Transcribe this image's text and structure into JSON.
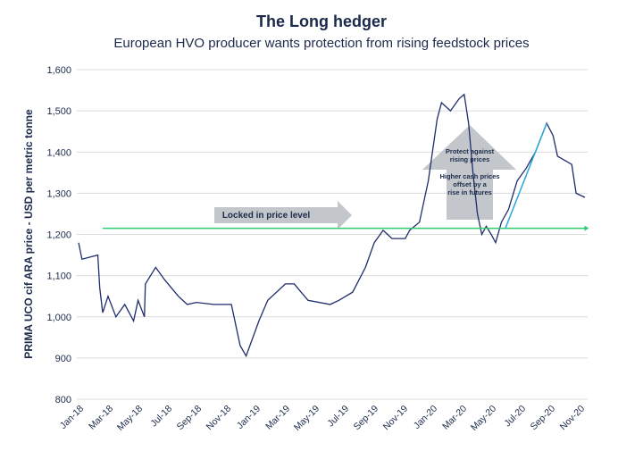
{
  "chart_data": {
    "type": "line",
    "title": "The Long hedger",
    "subtitle": "European HVO producer wants protection from rising feedstock prices",
    "xlabel": "",
    "ylabel": "PRIMA UCO cif ARA price - USD per metric tonne",
    "ylim": [
      800,
      1600
    ],
    "yticks": [
      800,
      900,
      1000,
      1100,
      1200,
      1300,
      1400,
      1500,
      1600
    ],
    "ytick_labels": [
      "800",
      "900",
      "1,000",
      "1,100",
      "1,200",
      "1,300",
      "1,400",
      "1,500",
      "1,600"
    ],
    "xticks": [
      "2018-01-01",
      "2018-03-01",
      "2018-05-01",
      "2018-07-01",
      "2018-09-01",
      "2018-11-01",
      "2019-01-01",
      "2019-03-01",
      "2019-05-01",
      "2019-07-01",
      "2019-09-01",
      "2019-11-01",
      "2020-01-01",
      "2020-03-01",
      "2020-05-01",
      "2020-07-01",
      "2020-09-01",
      "2020-11-01"
    ],
    "xtick_labels": [
      "Jan-18",
      "Mar-18",
      "May-18",
      "Jul-18",
      "Sep-18",
      "Nov-18",
      "Jan-19",
      "Mar-19",
      "May-19",
      "Jul-19",
      "Sep-19",
      "Nov-19",
      "Jan-20",
      "Mar-20",
      "May-20",
      "Jul-20",
      "Sep-20",
      "Nov-20"
    ],
    "grid": "horizontal",
    "line_color": "#1f2d6b",
    "series": [
      {
        "x": [
          "2018-01-01",
          "2018-01-08",
          "2018-02-10",
          "2018-02-14",
          "2018-02-20",
          "2018-03-01",
          "2018-03-17",
          "2018-04-05",
          "2018-04-23",
          "2018-05-02",
          "2018-05-15",
          "2018-05-17",
          "2018-06-08",
          "2018-06-26",
          "2018-07-24",
          "2018-08-12",
          "2018-09-01",
          "2018-10-06",
          "2018-11-12",
          "2018-11-21",
          "2018-11-30",
          "2018-12-12",
          "2019-01-08",
          "2019-01-26",
          "2019-03-02",
          "2019-03-20",
          "2019-04-18",
          "2019-06-03",
          "2019-06-21",
          "2019-07-19",
          "2019-08-15",
          "2019-09-03",
          "2019-09-21",
          "2019-10-09",
          "2019-11-06",
          "2019-11-15",
          "2019-12-05",
          "2019-12-23",
          "2020-01-11",
          "2020-01-20",
          "2020-02-08",
          "2020-02-26",
          "2020-03-06",
          "2020-03-15",
          "2020-03-24",
          "2020-04-03",
          "2020-04-12",
          "2020-04-21",
          "2020-05-01",
          "2020-05-10",
          "2020-05-22",
          "2020-06-06",
          "2020-06-24",
          "2020-07-12",
          "2020-08-01",
          "2020-08-24",
          "2020-09-07",
          "2020-09-16",
          "2020-10-15",
          "2020-10-24",
          "2020-11-12"
        ],
        "y": [
          1180,
          1140,
          1150,
          1070,
          1010,
          1050,
          1000,
          1030,
          990,
          1040,
          1000,
          1080,
          1120,
          1090,
          1050,
          1030,
          1035,
          1030,
          1030,
          980,
          930,
          905,
          990,
          1040,
          1080,
          1080,
          1040,
          1030,
          1040,
          1060,
          1120,
          1180,
          1210,
          1190,
          1190,
          1210,
          1230,
          1330,
          1480,
          1520,
          1500,
          1530,
          1540,
          1470,
          1350,
          1250,
          1200,
          1220,
          1200,
          1180,
          1230,
          1260,
          1330,
          1360,
          1400,
          1470,
          1440,
          1390,
          1370,
          1300,
          1290
        ]
      }
    ],
    "annotations": {
      "locked_level": {
        "value": 1215,
        "from": "2018-02-20",
        "to": "2020-11-20",
        "color": "#2ecc71"
      },
      "rise_line": {
        "from": [
          "2020-05-30",
          1215
        ],
        "to": [
          "2020-08-24",
          1470
        ],
        "color": "#29a8d8"
      },
      "locked_arrow_label": "Locked in price level",
      "up_arrow_label_1": "Protect against rising prices",
      "up_arrow_label_2": "Higher cash prices offset by a rise in futures",
      "arrow_color": "#c3c7cb"
    }
  }
}
